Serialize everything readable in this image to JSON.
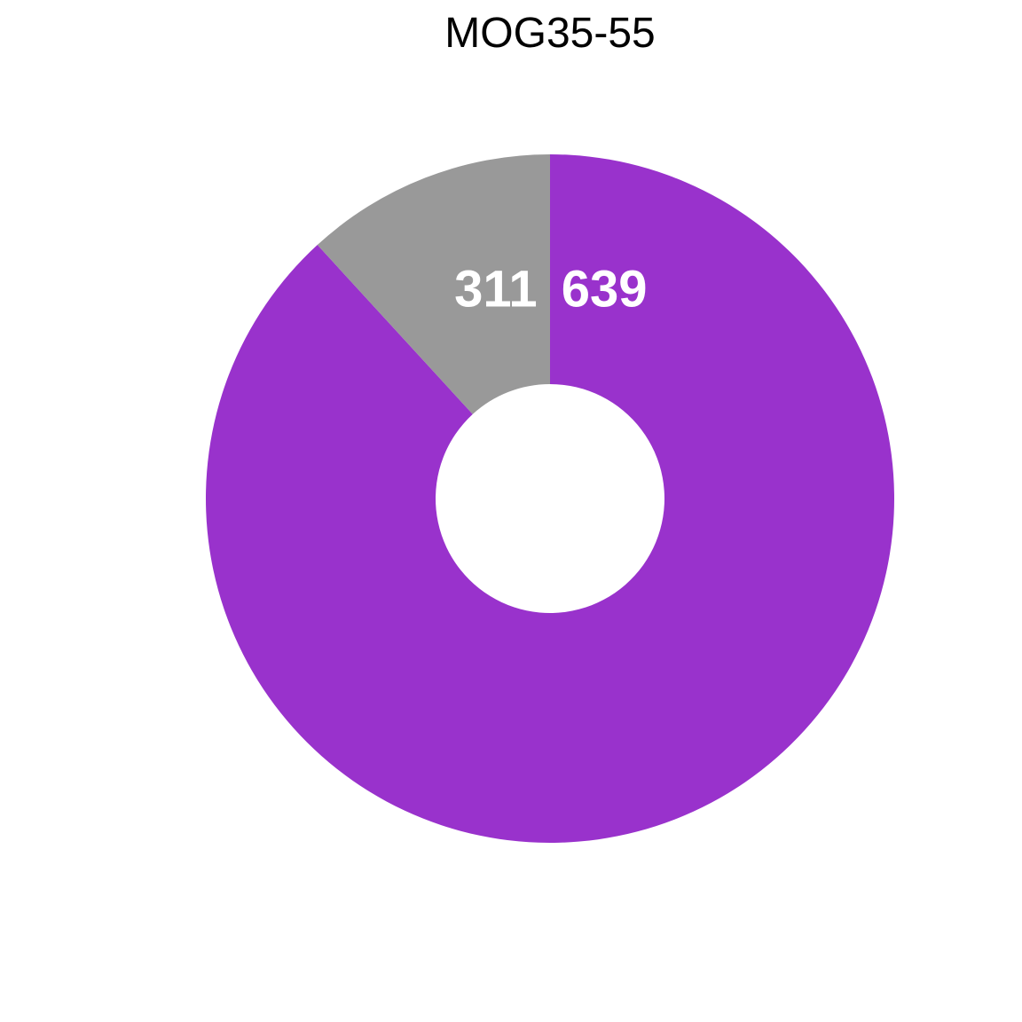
{
  "chart_data": {
    "type": "pie",
    "title": "MOG35-55",
    "slices": [
      {
        "value": 639,
        "color": "#9932CC",
        "label_text": "639"
      },
      {
        "value": 311,
        "color": "#999999",
        "label_text": "311"
      }
    ],
    "donut": true,
    "legend": "none"
  }
}
